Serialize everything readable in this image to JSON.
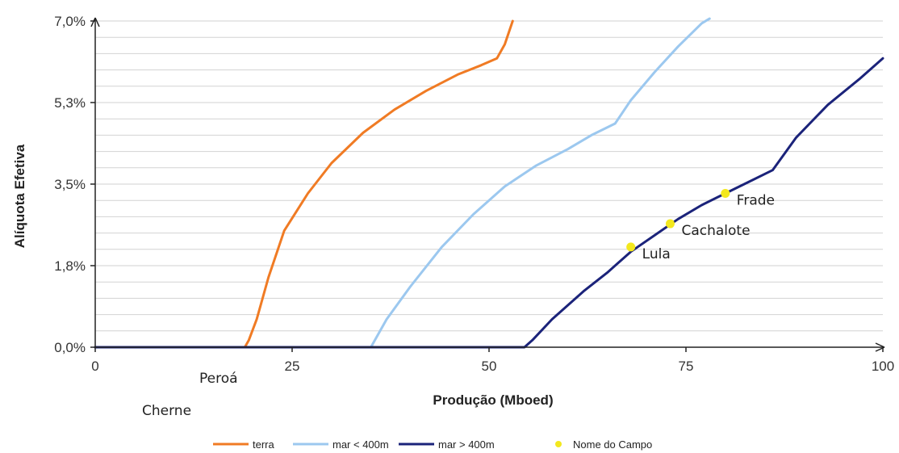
{
  "chart_data": {
    "type": "line",
    "xlabel": "Produção (Mboed)",
    "ylabel": "Alíquota Efetiva",
    "xlim": [
      0,
      100
    ],
    "ylim": [
      0,
      7
    ],
    "x_ticks": [
      0,
      25,
      50,
      75,
      100
    ],
    "x_tick_labels": [
      "0",
      "25",
      "50",
      "75",
      "100"
    ],
    "y_ticks": [
      0,
      1.75,
      3.5,
      5.25,
      7
    ],
    "y_tick_labels": [
      "0,0%",
      "1,8%",
      "3,5%",
      "5,3%",
      "7,0%"
    ],
    "grid": "horizontal",
    "legend_position": "bottom",
    "series": [
      {
        "name": "terra",
        "color": "#f07b24",
        "x": [
          0,
          19,
          19.5,
          20.5,
          22,
          24,
          27,
          30,
          34,
          38,
          42,
          46,
          49,
          51,
          52,
          53
        ],
        "y": [
          0,
          0,
          0.15,
          0.6,
          1.5,
          2.5,
          3.3,
          3.95,
          4.6,
          5.1,
          5.5,
          5.85,
          6.05,
          6.2,
          6.5,
          7
        ]
      },
      {
        "name": "mar < 400m",
        "color": "#9cc8ef",
        "x": [
          0,
          35,
          37,
          40,
          44,
          48,
          52,
          56,
          60,
          63,
          66,
          68,
          71,
          74,
          77,
          78
        ],
        "y": [
          0,
          0,
          0.6,
          1.3,
          2.15,
          2.85,
          3.45,
          3.9,
          4.25,
          4.55,
          4.8,
          5.3,
          5.9,
          6.45,
          6.95,
          7.05
        ]
      },
      {
        "name": "mar > 400m",
        "color": "#1b237a",
        "x": [
          0,
          54.5,
          55.5,
          58,
          62,
          65,
          68,
          71,
          74,
          77,
          80,
          83,
          86,
          89,
          93,
          97,
          100
        ],
        "y": [
          0,
          0,
          0.15,
          0.6,
          1.2,
          1.6,
          2.05,
          2.4,
          2.75,
          3.05,
          3.3,
          3.55,
          3.8,
          4.5,
          5.2,
          5.75,
          6.2
        ]
      }
    ],
    "points": {
      "name": "Nome do Campo",
      "color": "#f3e81e",
      "items": [
        {
          "label": "Lula",
          "x": 68,
          "y": 2.15
        },
        {
          "label": "Cachalote",
          "x": 73,
          "y": 2.65
        },
        {
          "label": "Frade",
          "x": 80,
          "y": 3.3
        }
      ]
    },
    "outside_labels": [
      "Peroá",
      "Cherne"
    ]
  }
}
